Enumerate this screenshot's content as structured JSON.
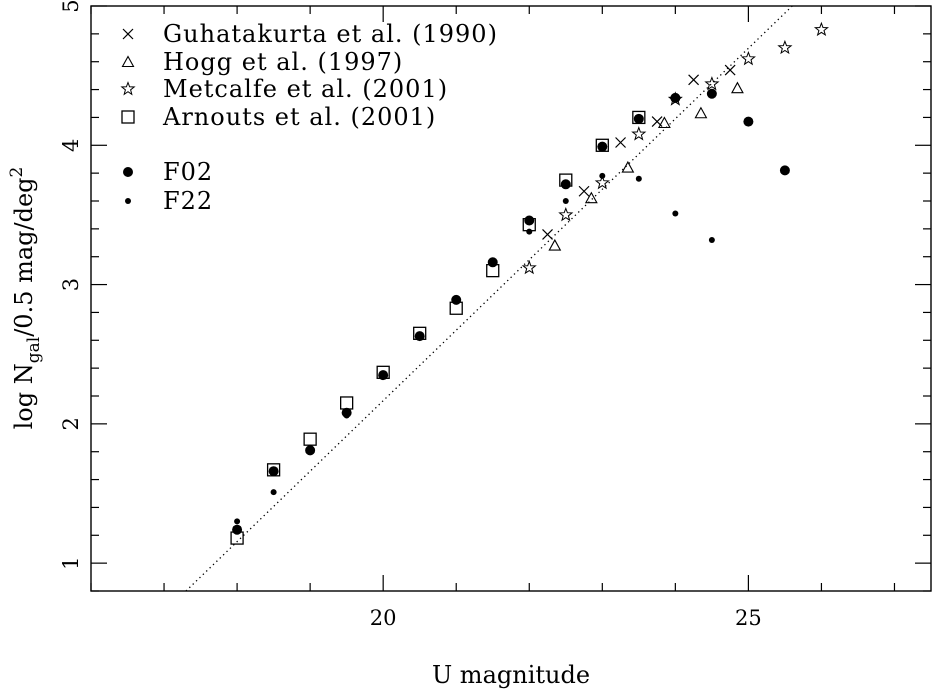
{
  "chart_data": {
    "type": "scatter",
    "xlabel": "U magnitude",
    "ylabel": {
      "prefix": "log N",
      "sub": "gal",
      "mid": "/0.5 mag/deg",
      "sup": "2"
    },
    "xlim": [
      16,
      27.5
    ],
    "ylim": [
      0.8,
      5
    ],
    "x_ticks": [
      20,
      25
    ],
    "y_ticks": [
      1,
      2,
      3,
      4,
      5
    ],
    "grid": false,
    "legend_position": "top-left",
    "reference_line": {
      "style": "dotted",
      "from": [
        17.3,
        0.8
      ],
      "to": [
        25.6,
        5
      ]
    },
    "series": [
      {
        "name": "Guhatakurta et al. (1990)",
        "marker": "cross",
        "points": [
          [
            22.25,
            3.36
          ],
          [
            22.75,
            3.67
          ],
          [
            23.25,
            4.02
          ],
          [
            23.75,
            4.17
          ],
          [
            24.25,
            4.47
          ],
          [
            24.75,
            4.54
          ]
        ]
      },
      {
        "name": "Hogg et al. (1997)",
        "marker": "triangle",
        "points": [
          [
            22.35,
            3.28
          ],
          [
            22.85,
            3.62
          ],
          [
            23.35,
            3.84
          ],
          [
            23.85,
            4.16
          ],
          [
            24.35,
            4.23
          ],
          [
            24.85,
            4.41
          ]
        ]
      },
      {
        "name": "Metcalfe et al. (2001)",
        "marker": "star",
        "points": [
          [
            22.0,
            3.12
          ],
          [
            22.5,
            3.5
          ],
          [
            23.0,
            3.73
          ],
          [
            23.5,
            4.08
          ],
          [
            24.0,
            4.33
          ],
          [
            24.5,
            4.44
          ],
          [
            25.0,
            4.62
          ],
          [
            25.5,
            4.7
          ],
          [
            26.0,
            4.83
          ]
        ]
      },
      {
        "name": "Arnouts et al. (2001)",
        "marker": "square",
        "points": [
          [
            18.0,
            1.18
          ],
          [
            18.5,
            1.67
          ],
          [
            19.0,
            1.89
          ],
          [
            19.5,
            2.15
          ],
          [
            20.0,
            2.37
          ],
          [
            20.5,
            2.65
          ],
          [
            21.0,
            2.83
          ],
          [
            21.5,
            3.1
          ],
          [
            22.0,
            3.43
          ],
          [
            22.5,
            3.75
          ],
          [
            23.0,
            4.0
          ],
          [
            23.5,
            4.2
          ]
        ]
      },
      {
        "name": "F02",
        "marker": "filled-circle-large",
        "points": [
          [
            18.0,
            1.24
          ],
          [
            18.5,
            1.66
          ],
          [
            19.0,
            1.81
          ],
          [
            19.5,
            2.08
          ],
          [
            20.0,
            2.35
          ],
          [
            20.5,
            2.63
          ],
          [
            21.0,
            2.89
          ],
          [
            21.5,
            3.16
          ],
          [
            22.0,
            3.46
          ],
          [
            22.5,
            3.72
          ],
          [
            23.0,
            3.99
          ],
          [
            23.5,
            4.19
          ],
          [
            24.0,
            4.34
          ],
          [
            24.5,
            4.37
          ],
          [
            25.0,
            4.17
          ],
          [
            25.5,
            3.82
          ]
        ]
      },
      {
        "name": "F22",
        "marker": "filled-circle-small",
        "points": [
          [
            18.0,
            1.3
          ],
          [
            18.5,
            1.51
          ],
          [
            19.0,
            1.83
          ],
          [
            19.5,
            2.06
          ],
          [
            20.0,
            2.36
          ],
          [
            20.5,
            2.63
          ],
          [
            21.0,
            2.9
          ],
          [
            21.5,
            3.16
          ],
          [
            22.0,
            3.38
          ],
          [
            22.5,
            3.6
          ],
          [
            23.0,
            3.78
          ],
          [
            23.5,
            3.76
          ],
          [
            24.0,
            3.51
          ],
          [
            24.5,
            3.32
          ]
        ]
      }
    ]
  }
}
